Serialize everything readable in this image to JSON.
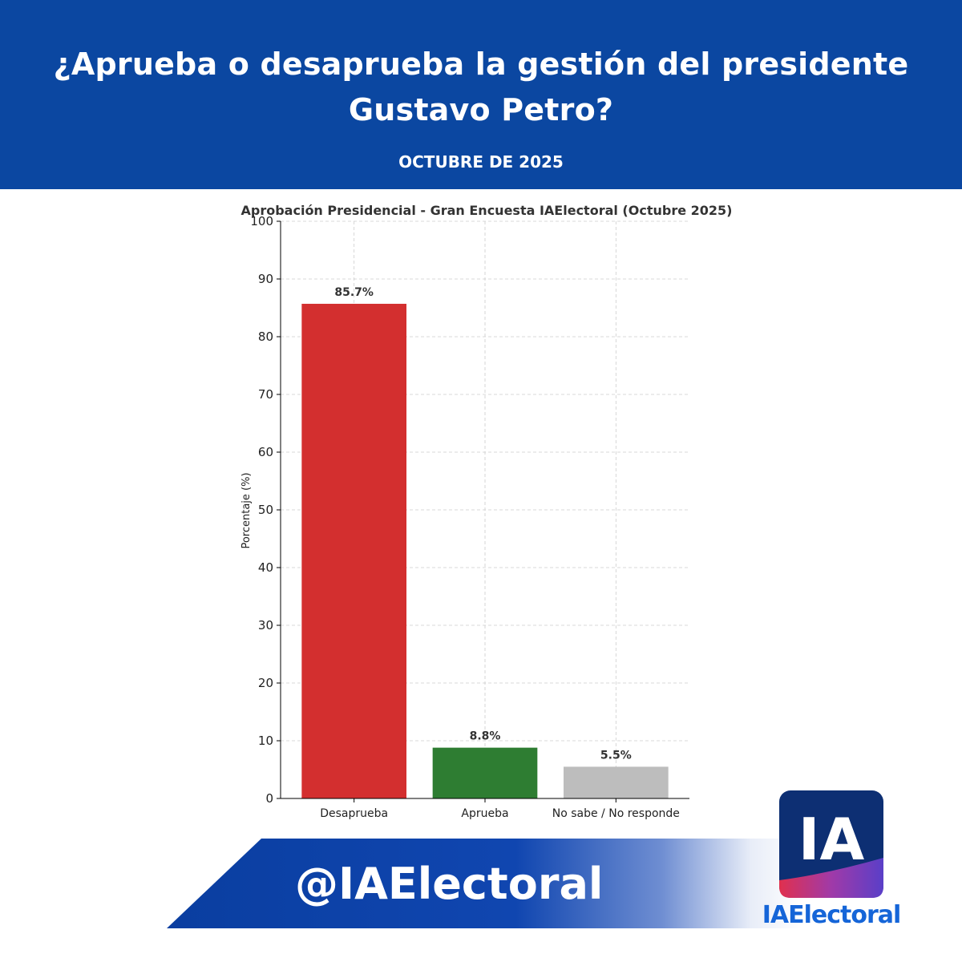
{
  "header": {
    "title": "¿Aprueba o desaprueba la gestión del presidente Gustavo Petro?",
    "subtitle": "OCTUBRE DE 2025"
  },
  "colors": {
    "header_bg": "#0b47a1",
    "disapprove": "#d32f2f",
    "approve": "#2e7d32",
    "undecided": "#bdbdbd"
  },
  "chart_data": {
    "type": "bar",
    "title": "Aprobación Presidencial - Gran Encuesta IAElectoral (Octubre 2025)",
    "xlabel": "",
    "ylabel": "Porcentaje (%)",
    "ylim": [
      0,
      100
    ],
    "yticks": [
      0,
      10,
      20,
      30,
      40,
      50,
      60,
      70,
      80,
      90,
      100
    ],
    "grid": true,
    "categories": [
      "Desaprueba",
      "Aprueba",
      "No sabe / No responde"
    ],
    "values": [
      85.7,
      8.8,
      5.5
    ],
    "labels": [
      "85.7%",
      "8.8%",
      "5.5%"
    ],
    "bar_colors": [
      "#d32f2f",
      "#2e7d32",
      "#bdbdbd"
    ]
  },
  "branding": {
    "handle": "@IAElectoral",
    "logo_mark": "IA",
    "logo_name": "IAElectoral"
  }
}
